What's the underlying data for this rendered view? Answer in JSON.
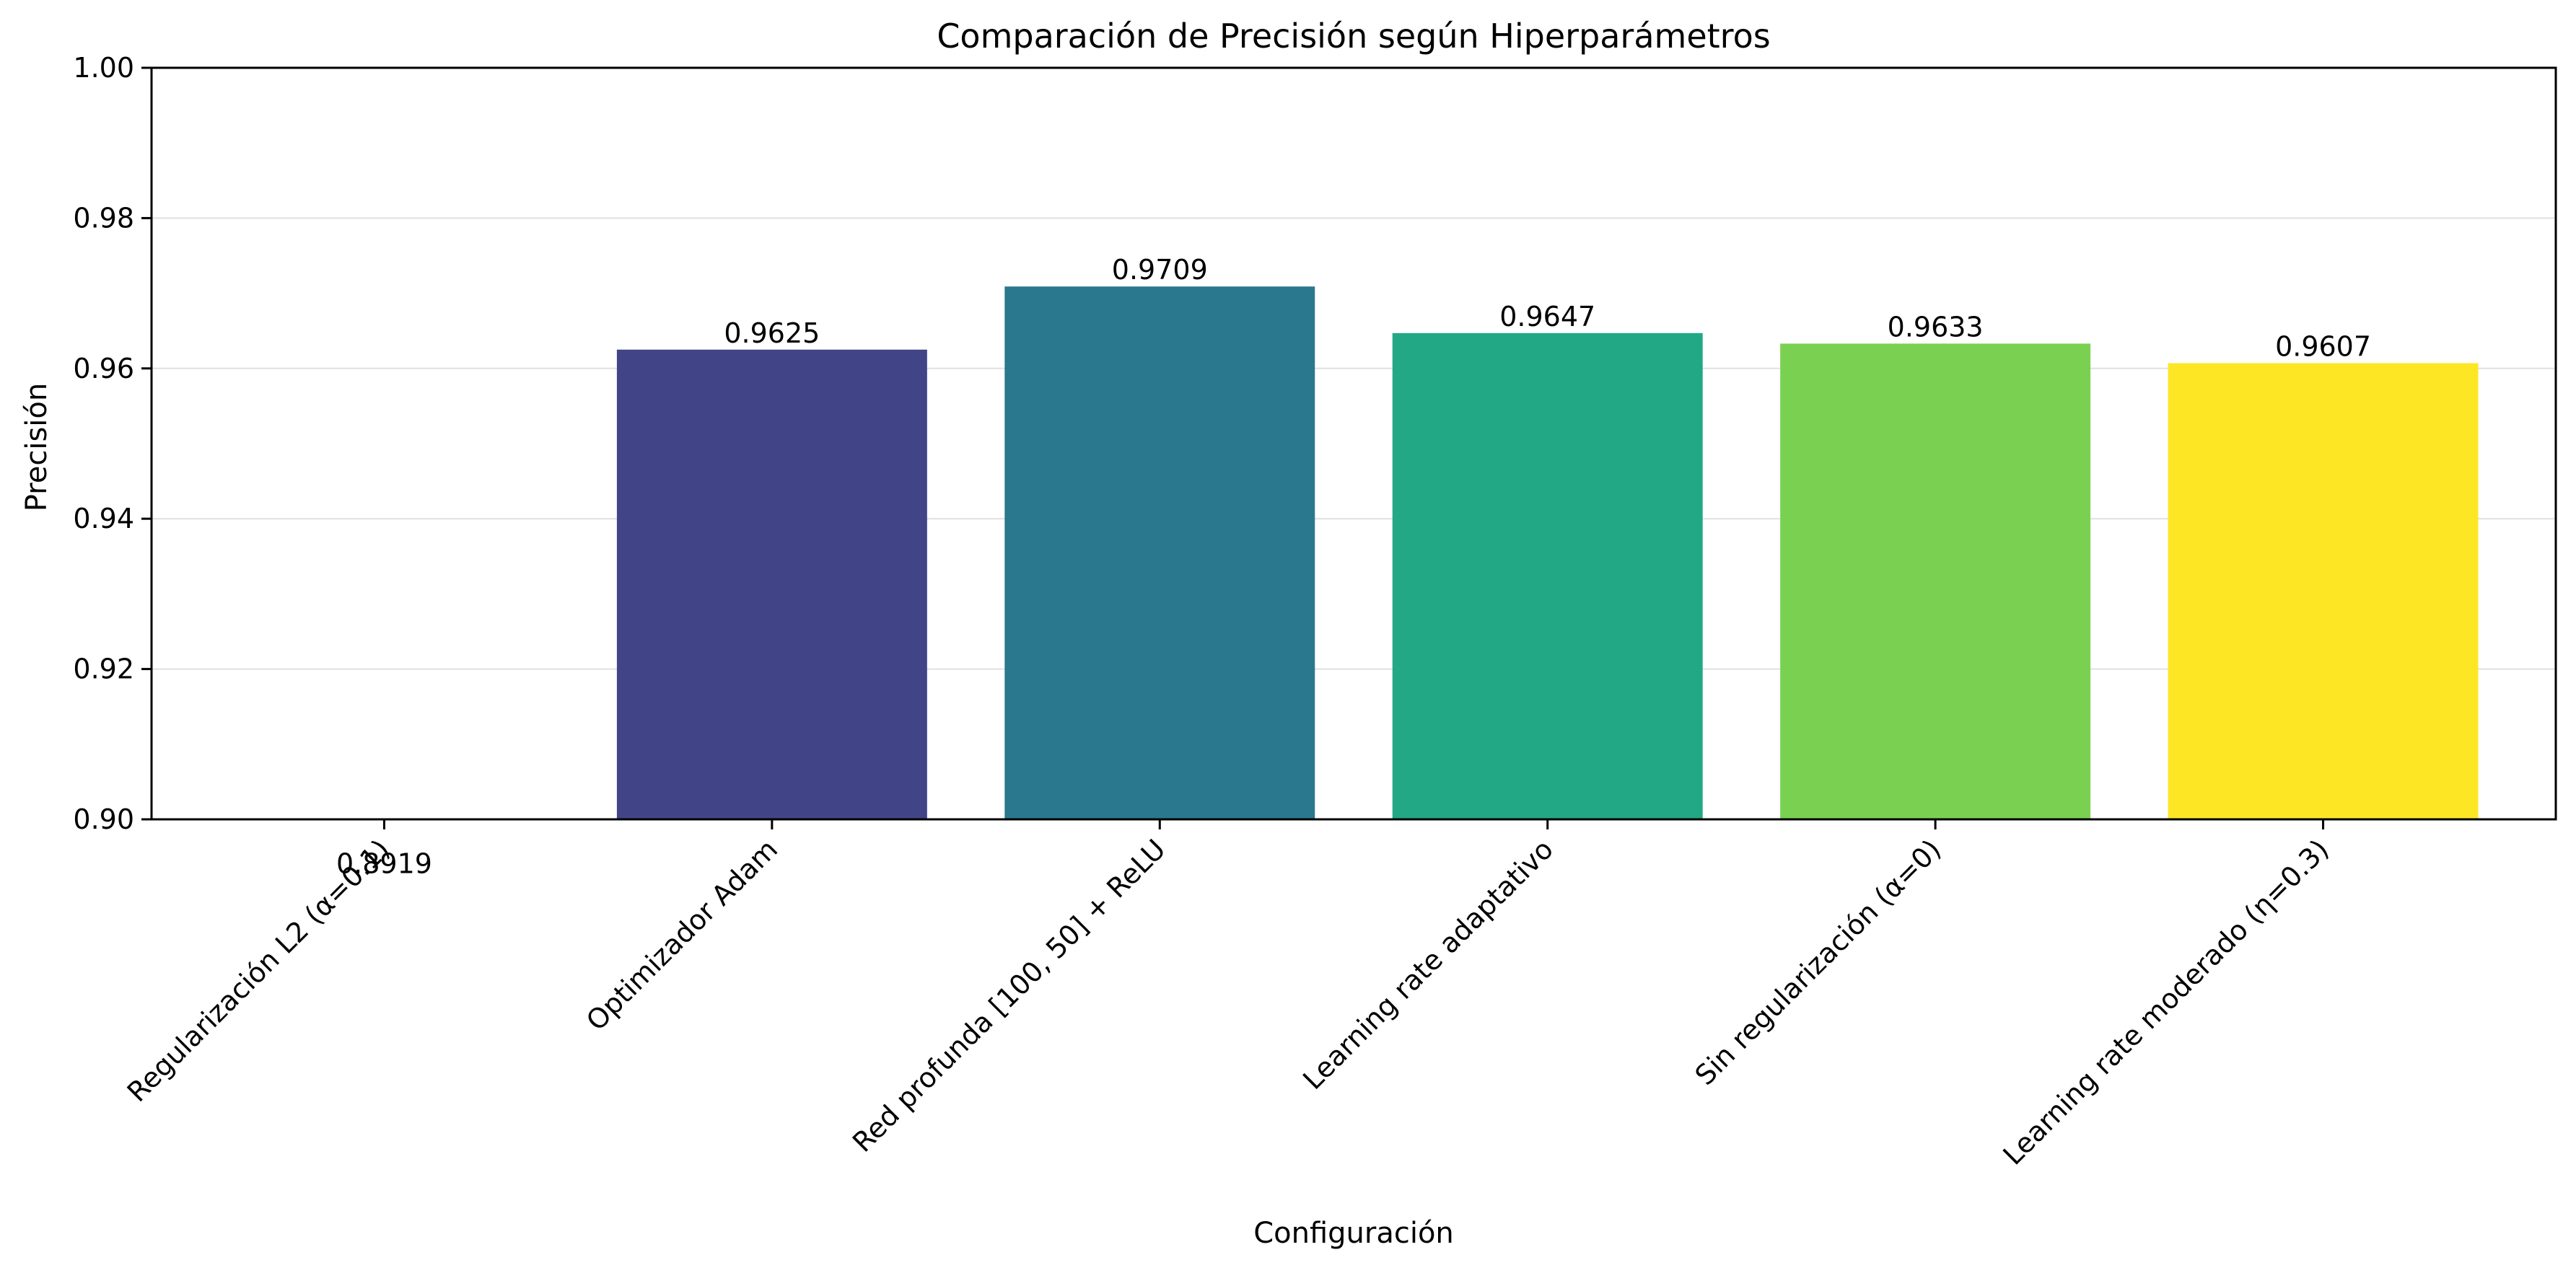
{
  "chart_data": {
    "type": "bar",
    "title": "Comparación de Precisión según Hiperparámetros",
    "xlabel": "Configuración",
    "ylabel": "Precisión",
    "ylim": [
      0.9,
      1.0
    ],
    "yticks": [
      0.9,
      0.92,
      0.94,
      0.96,
      0.98,
      1.0
    ],
    "ytick_labels": [
      "0.90",
      "0.92",
      "0.94",
      "0.96",
      "0.98",
      "1.00"
    ],
    "grid": "horizontal",
    "categories": [
      "Regularización L2 (α=0.1)",
      "Optimizador Adam",
      "Red profunda [100, 50] + ReLU",
      "Learning rate adaptativo",
      "Sin regularización (α=0)",
      "Learning rate moderado (η=0.3)"
    ],
    "values": [
      0.8919,
      0.9625,
      0.9709,
      0.9647,
      0.9633,
      0.9607
    ],
    "value_labels": [
      "0.8919",
      "0.9625",
      "0.9709",
      "0.9647",
      "0.9633",
      "0.9607"
    ],
    "colors": [
      "#440154",
      "#414487",
      "#2a788e",
      "#22a884",
      "#7ad151",
      "#fde725"
    ]
  }
}
